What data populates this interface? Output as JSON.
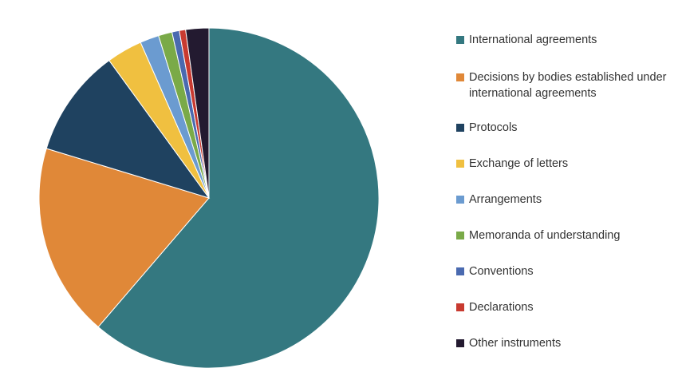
{
  "chart_data": {
    "type": "pie",
    "title": "",
    "legend_position": "right",
    "slices": [
      {
        "label": "International agreements",
        "value": 61.3,
        "color": "#347880"
      },
      {
        "label": "Decisions by bodies established under international agreements",
        "value": 18.4,
        "color": "#E08838"
      },
      {
        "label": "Protocols",
        "value": 10.3,
        "color": "#1F4260"
      },
      {
        "label": "Exchange of letters",
        "value": 3.4,
        "color": "#F0C040"
      },
      {
        "label": "Arrangements",
        "value": 1.8,
        "color": "#6B9BD0"
      },
      {
        "label": "Memoranda of understanding",
        "value": 1.3,
        "color": "#7AAA48"
      },
      {
        "label": "Conventions",
        "value": 0.7,
        "color": "#4A6AB0"
      },
      {
        "label": "Declarations",
        "value": 0.6,
        "color": "#C83A30"
      },
      {
        "label": "Other instruments",
        "value": 2.2,
        "color": "#231A30"
      }
    ]
  }
}
